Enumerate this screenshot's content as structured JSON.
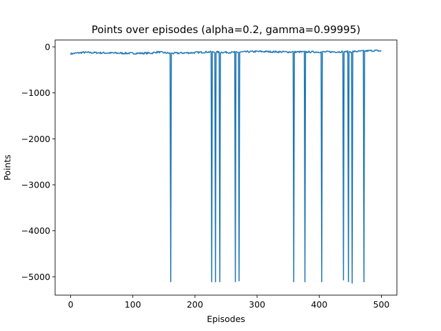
{
  "chart_data": {
    "type": "line",
    "title": "Points over episodes (alpha=0.2, gamma=0.99995)",
    "xlabel": "Episodes",
    "ylabel": "Points",
    "xlim": [
      -25,
      525
    ],
    "ylim": [
      -5400,
      150
    ],
    "xticks": [
      0,
      100,
      200,
      300,
      400,
      500
    ],
    "xtick_labels": [
      "0",
      "100",
      "200",
      "300",
      "400",
      "500"
    ],
    "yticks": [
      0,
      -1000,
      -2000,
      -3000,
      -4000,
      -5000
    ],
    "ytick_labels": [
      "0",
      "−1000",
      "−2000",
      "−3000",
      "−4000",
      "−5000"
    ],
    "grid": false,
    "legend": "none",
    "series": [
      {
        "color": "#1f77b4",
        "baseline": [
          [
            0,
            -150
          ],
          [
            20,
            -120
          ],
          [
            50,
            -130
          ],
          [
            100,
            -140
          ],
          [
            130,
            -135
          ],
          [
            140,
            -110
          ],
          [
            160,
            -140
          ],
          [
            200,
            -125
          ],
          [
            220,
            -110
          ],
          [
            260,
            -120
          ],
          [
            300,
            -100
          ],
          [
            350,
            -110
          ],
          [
            400,
            -110
          ],
          [
            450,
            -105
          ],
          [
            490,
            -80
          ],
          [
            500,
            -90
          ]
        ],
        "drops": [
          {
            "x": 161,
            "y": -5110
          },
          {
            "x": 227,
            "y": -5110
          },
          {
            "x": 233,
            "y": -5110
          },
          {
            "x": 240,
            "y": -5110
          },
          {
            "x": 265,
            "y": -5110
          },
          {
            "x": 271,
            "y": -5090
          },
          {
            "x": 359,
            "y": -5110
          },
          {
            "x": 377,
            "y": -5110
          },
          {
            "x": 404,
            "y": -5110
          },
          {
            "x": 439,
            "y": -5070
          },
          {
            "x": 447,
            "y": -5110
          },
          {
            "x": 453,
            "y": -5140
          },
          {
            "x": 472,
            "y": -5110
          }
        ]
      }
    ]
  }
}
